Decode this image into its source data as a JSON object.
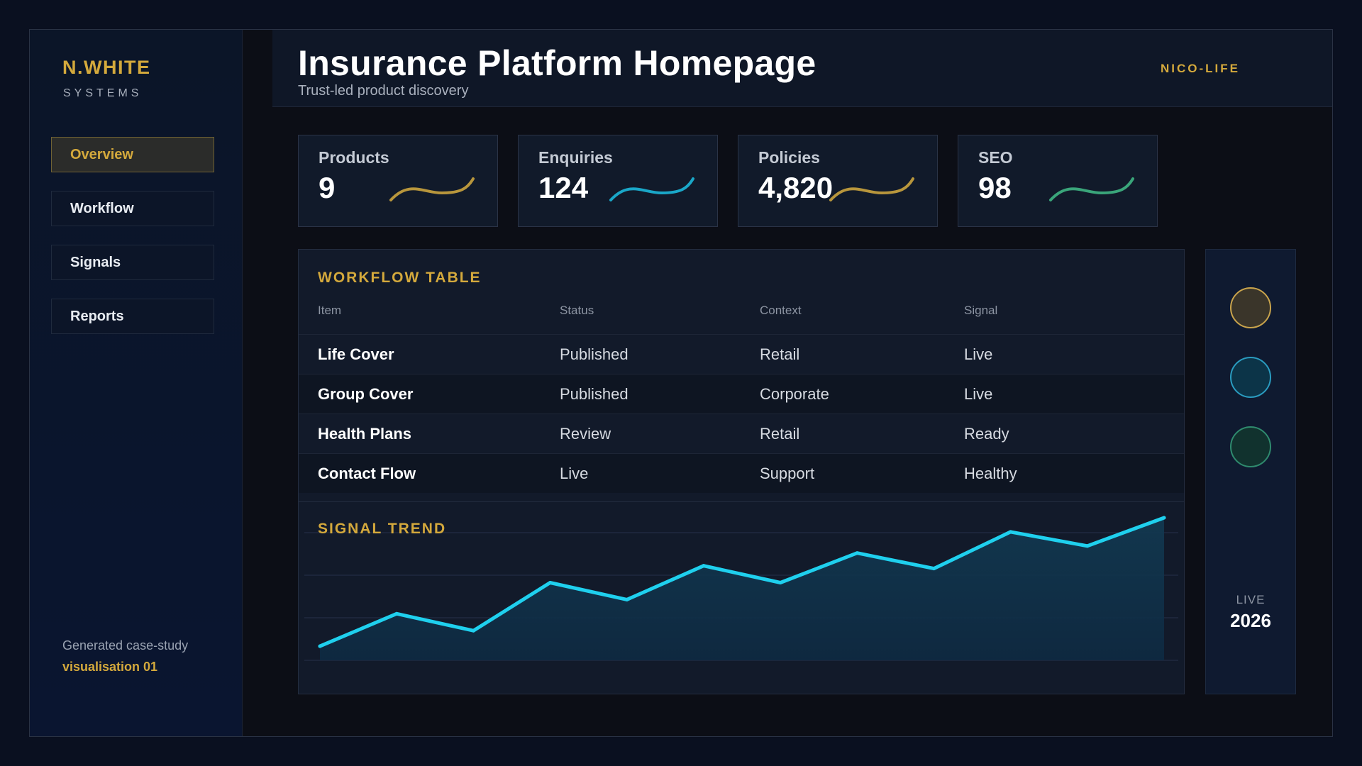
{
  "brand": {
    "name": "N.WHITE",
    "sub": "SYSTEMS"
  },
  "sidebar": {
    "items": [
      {
        "label": "Overview",
        "active": true
      },
      {
        "label": "Workflow",
        "active": false
      },
      {
        "label": "Signals",
        "active": false
      },
      {
        "label": "Reports",
        "active": false
      }
    ],
    "footer_note": "Generated case-study",
    "footer_emphasis": "visualisation 01"
  },
  "header": {
    "title": "Insurance Platform Homepage",
    "subtitle": "Trust-led product discovery",
    "tenant": "NICO-LIFE"
  },
  "kpis": [
    {
      "label": "Products",
      "value": "9",
      "spark_color": "#b8963c"
    },
    {
      "label": "Enquiries",
      "value": "124",
      "spark_color": "#1aa7c8"
    },
    {
      "label": "Policies",
      "value": "4,820",
      "spark_color": "#b8963c"
    },
    {
      "label": "SEO",
      "value": "98",
      "spark_color": "#3aa57a"
    }
  ],
  "workflow_table": {
    "title": "WORKFLOW TABLE",
    "columns": [
      "Item",
      "Status",
      "Context",
      "Signal"
    ],
    "rows": [
      [
        "Life Cover",
        "Published",
        "Retail",
        "Live"
      ],
      [
        "Group Cover",
        "Published",
        "Corporate",
        "Live"
      ],
      [
        "Health Plans",
        "Review",
        "Retail",
        "Ready"
      ],
      [
        "Contact Flow",
        "Live",
        "Support",
        "Healthy"
      ]
    ]
  },
  "signal_trend": {
    "title": "SIGNAL TREND"
  },
  "chart_data": {
    "type": "area",
    "title": "SIGNAL TREND",
    "xlabel": "",
    "ylabel": "",
    "x": [
      1,
      2,
      3,
      4,
      5,
      6,
      7,
      8,
      9,
      10,
      11,
      12
    ],
    "series": [
      {
        "values": [
          10,
          33,
          21,
          55,
          43,
          67,
          55,
          76,
          65,
          91,
          81,
          101
        ]
      }
    ],
    "ylim": [
      0,
      102
    ],
    "grid": true,
    "color": "#1fd0ee"
  },
  "status_panel": {
    "dots": [
      {
        "name": "gold-status-dot",
        "fill": "#3a352a",
        "stroke": "#c9a44c"
      },
      {
        "name": "cyan-status-dot",
        "fill": "#0c3448",
        "stroke": "#2a9cc0"
      },
      {
        "name": "green-status-dot",
        "fill": "#11322e",
        "stroke": "#2f8a6e"
      }
    ],
    "live_label": "LIVE",
    "year": "2026"
  },
  "colors": {
    "accent": "#d4a93c",
    "line": "#1fd0ee",
    "background": "#0a1020"
  }
}
